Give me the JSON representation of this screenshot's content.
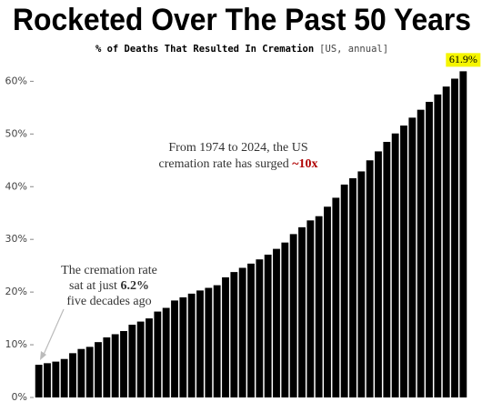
{
  "chart_data": {
    "type": "bar",
    "title": "Rocketed Over The Past 50 Years",
    "subtitle": "% of Deaths That Resulted In Cremation",
    "subtitle_note": "[US, annual]",
    "annotations": [
      {
        "lines": [
          "From 1974 to 2024,  the US",
          "cremation rate has surged "
        ],
        "highlight": "~10x"
      },
      {
        "lines": [
          "The cremation rate",
          "sat at just ",
          "five decades ago"
        ],
        "highlight": "6.2%"
      }
    ],
    "categories": [
      null,
      null,
      null,
      null,
      null,
      null,
      null,
      null,
      null,
      null,
      null,
      null,
      null,
      null,
      null,
      null,
      null,
      null,
      null,
      null,
      null,
      null,
      null,
      null,
      null,
      null,
      null,
      null,
      null,
      null,
      null,
      null,
      null,
      null,
      null,
      null,
      null,
      null,
      null,
      null,
      null,
      null,
      null,
      null,
      null,
      null,
      null,
      null,
      null,
      null,
      null
    ],
    "values": [
      6.2,
      6.5,
      6.8,
      7.3,
      8.4,
      9.2,
      9.6,
      10.5,
      11.4,
      12.0,
      12.6,
      13.8,
      14.4,
      15.0,
      16.3,
      17.0,
      18.4,
      19.0,
      19.7,
      20.3,
      20.8,
      21.3,
      22.8,
      23.8,
      24.6,
      25.4,
      26.2,
      27.1,
      28.2,
      29.4,
      31.0,
      32.3,
      33.6,
      34.4,
      36.2,
      37.9,
      40.4,
      41.6,
      42.9,
      45.0,
      46.7,
      48.5,
      50.1,
      51.6,
      53.1,
      54.6,
      56.1,
      57.5,
      59.0,
      60.5,
      61.9
    ],
    "value_labels": [
      null,
      null,
      null,
      null,
      null,
      null,
      null,
      null,
      null,
      null,
      null,
      null,
      null,
      null,
      null,
      null,
      null,
      null,
      null,
      null,
      null,
      null,
      null,
      null,
      null,
      null,
      null,
      null,
      null,
      null,
      null,
      null,
      null,
      null,
      null,
      null,
      null,
      null,
      null,
      null,
      null,
      null,
      null,
      null,
      null,
      null,
      null,
      null,
      null,
      null,
      "61.9%"
    ],
    "color": "#000000",
    "ylim": [
      0,
      63
    ],
    "yticks": [
      {
        "value": 0,
        "label": "0%"
      },
      {
        "value": 10,
        "label": "10%"
      },
      {
        "value": 20,
        "label": "20%"
      },
      {
        "value": 30,
        "label": "30%"
      },
      {
        "value": 40,
        "label": "40%"
      },
      {
        "value": 50,
        "label": "50%"
      },
      {
        "value": 60,
        "label": "60%"
      }
    ],
    "grid": false
  }
}
